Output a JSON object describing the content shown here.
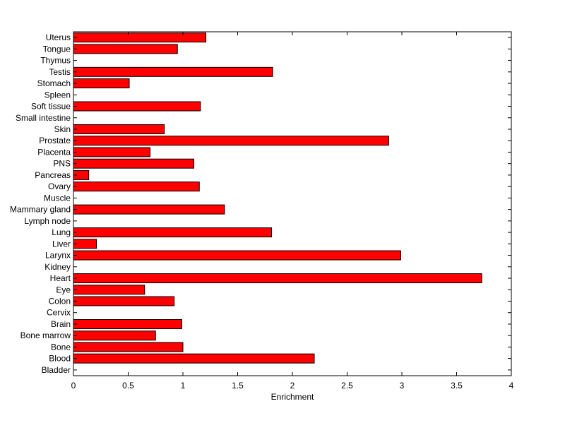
{
  "chart_data": {
    "type": "bar",
    "orientation": "horizontal",
    "title": "",
    "xlabel": "Enrichment",
    "ylabel": "",
    "xlim": [
      0,
      4
    ],
    "x_ticks": [
      "0",
      "0.5",
      "1",
      "1.5",
      "2",
      "2.5",
      "3",
      "3.5",
      "4"
    ],
    "grid": false,
    "bar_color": "#ff0000",
    "categories": [
      "Bladder",
      "Blood",
      "Bone",
      "Bone marrow",
      "Brain",
      "Cervix",
      "Colon",
      "Eye",
      "Heart",
      "Kidney",
      "Larynx",
      "Liver",
      "Lung",
      "Lymph node",
      "Mammary gland",
      "Muscle",
      "Ovary",
      "Pancreas",
      "PNS",
      "Placenta",
      "Prostate",
      "Skin",
      "Small intestine",
      "Soft tissue",
      "Spleen",
      "Stomach",
      "Testis",
      "Thymus",
      "Tongue",
      "Uterus"
    ],
    "values": [
      0,
      2.2,
      1.0,
      0.75,
      0.99,
      0,
      0.92,
      0.65,
      3.73,
      0,
      2.99,
      0.21,
      1.81,
      0,
      1.38,
      0,
      1.15,
      0.14,
      1.1,
      0.7,
      2.88,
      0.83,
      0,
      1.16,
      0,
      0.51,
      1.82,
      0,
      0.95,
      1.21
    ]
  }
}
